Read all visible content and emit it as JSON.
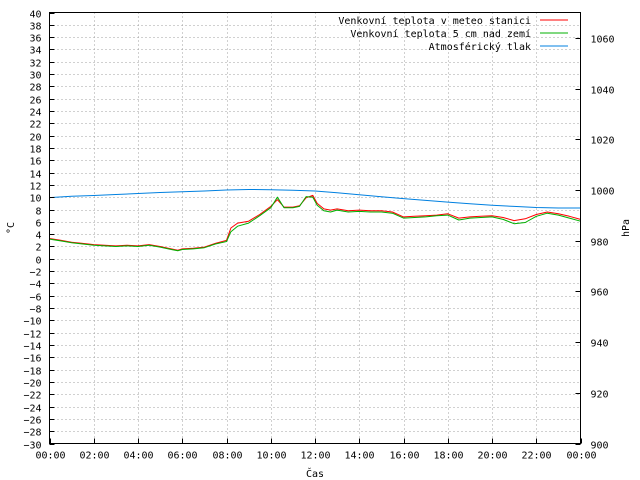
{
  "chart_data": {
    "type": "line",
    "xlabel": "Čas",
    "ylabel": "°C",
    "y2label": "hPa",
    "grid": true,
    "legend_position": "top-right",
    "x_ticks": [
      "00:00",
      "02:00",
      "04:00",
      "06:00",
      "08:00",
      "10:00",
      "12:00",
      "14:00",
      "16:00",
      "18:00",
      "20:00",
      "22:00",
      "00:00"
    ],
    "x_unit_hours": [
      0,
      24
    ],
    "ylim": [
      -30,
      40
    ],
    "y_step": 2,
    "y2lim": [
      900,
      1070
    ],
    "y2_ticks": [
      900,
      920,
      940,
      960,
      980,
      1000,
      1020,
      1040,
      1060
    ],
    "series": [
      {
        "name": "Venkovní teplota v meteo stanici",
        "color": "#ff0000",
        "axis": "left",
        "x": [
          0,
          0.5,
          1,
          1.5,
          2,
          2.5,
          3,
          3.5,
          4,
          4.5,
          5,
          5.5,
          5.8,
          6,
          6.5,
          7,
          7.5,
          8,
          8.2,
          8.5,
          9,
          9.5,
          10,
          10.3,
          10.6,
          11,
          11.3,
          11.6,
          11.9,
          12.1,
          12.4,
          12.7,
          13,
          13.5,
          14,
          14.5,
          15,
          15.5,
          16,
          16.5,
          17,
          17.5,
          18,
          18.5,
          19,
          19.5,
          20,
          20.5,
          21,
          21.5,
          22,
          22.5,
          23,
          23.5,
          24
        ],
        "values": [
          3.3,
          3.0,
          2.7,
          2.5,
          2.3,
          2.2,
          2.1,
          2.2,
          2.1,
          2.3,
          2.0,
          1.6,
          1.4,
          1.6,
          1.7,
          1.9,
          2.5,
          3.0,
          5.0,
          5.8,
          6.1,
          7.2,
          8.5,
          9.6,
          8.4,
          8.4,
          8.6,
          9.9,
          10.3,
          9.0,
          8.1,
          7.9,
          8.1,
          7.8,
          7.9,
          7.8,
          7.8,
          7.6,
          6.8,
          6.9,
          7.0,
          7.1,
          7.3,
          6.6,
          6.8,
          6.9,
          7.0,
          6.7,
          6.2,
          6.5,
          7.2,
          7.6,
          7.3,
          6.9,
          6.4
        ]
      },
      {
        "name": "Venkovní teplota 5 cm nad zemí",
        "color": "#00b000",
        "axis": "left",
        "x": [
          0,
          0.5,
          1,
          1.5,
          2,
          2.5,
          3,
          3.5,
          4,
          4.5,
          5,
          5.5,
          5.8,
          6,
          6.5,
          7,
          7.5,
          8,
          8.2,
          8.5,
          9,
          9.5,
          10,
          10.3,
          10.6,
          11,
          11.3,
          11.6,
          11.9,
          12.1,
          12.4,
          12.7,
          13,
          13.5,
          14,
          14.5,
          15,
          15.5,
          16,
          16.5,
          17,
          17.5,
          18,
          18.5,
          19,
          19.5,
          20,
          20.5,
          21,
          21.5,
          22,
          22.5,
          23,
          23.5,
          24
        ],
        "values": [
          3.2,
          2.9,
          2.6,
          2.4,
          2.2,
          2.1,
          2.0,
          2.1,
          2.0,
          2.2,
          1.9,
          1.5,
          1.3,
          1.5,
          1.6,
          1.8,
          2.4,
          2.8,
          4.4,
          5.3,
          5.8,
          7.0,
          8.3,
          10.0,
          8.3,
          8.3,
          8.5,
          10.1,
          10.0,
          8.7,
          7.8,
          7.6,
          7.9,
          7.6,
          7.7,
          7.6,
          7.6,
          7.4,
          6.6,
          6.7,
          6.8,
          7.0,
          7.1,
          6.3,
          6.6,
          6.7,
          6.8,
          6.4,
          5.7,
          5.9,
          6.9,
          7.4,
          7.1,
          6.6,
          6.1
        ]
      },
      {
        "name": "Atmosférický tlak",
        "color": "#0080e0",
        "axis": "right",
        "x": [
          0,
          1,
          2,
          3,
          4,
          5,
          6,
          7,
          8,
          9,
          10,
          11,
          12,
          13,
          14,
          15,
          16,
          17,
          18,
          19,
          20,
          21,
          22,
          23,
          24
        ],
        "values": [
          997.0,
          997.5,
          997.8,
          998.2,
          998.6,
          999.0,
          999.3,
          999.6,
          1000.0,
          1000.2,
          1000.1,
          999.9,
          999.6,
          998.9,
          998.1,
          997.3,
          996.6,
          995.9,
          995.2,
          994.6,
          994.0,
          993.5,
          993.1,
          992.9,
          992.9
        ]
      }
    ]
  }
}
